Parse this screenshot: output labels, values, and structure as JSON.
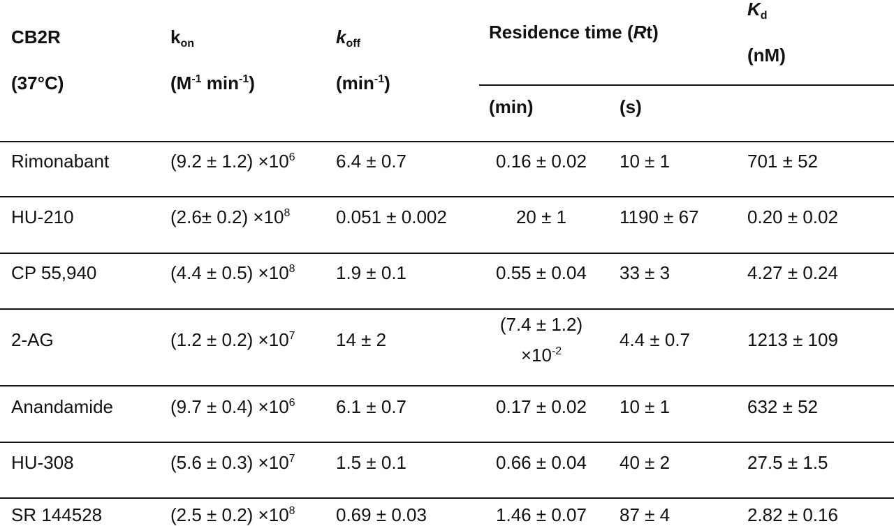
{
  "header": {
    "col1_line1": "CB2R",
    "col1_line2": "(37°C)",
    "kon_k": "k",
    "kon_sub": "on",
    "kon_unit_pre": "(M",
    "kon_unit_sup1": "-1",
    "kon_unit_mid": " min",
    "kon_unit_sup2": "-1",
    "kon_unit_post": ")",
    "koff_k": "k",
    "koff_sub": "off",
    "koff_unit_pre": "(min",
    "koff_unit_sup": "-1",
    "koff_unit_post": ")",
    "rt_pre": "Residence time (",
    "rt_r": "R",
    "rt_post": "t)",
    "rt_min": "(min)",
    "rt_s": "(s)",
    "kd_k": "K",
    "kd_sub": "d",
    "kd_unit": "(nM)"
  },
  "rows": [
    {
      "compound": "Rimonabant",
      "kon": "(9.2 ± 1.2) ×10",
      "kon_exp": "6",
      "koff": "6.4 ± 0.7",
      "rt_min": "0.16 ± 0.02",
      "rt_s": "10 ± 1",
      "kd": "701 ± 52"
    },
    {
      "compound": "HU-210",
      "kon": "(2.6± 0.2) ×10",
      "kon_exp": "8",
      "koff": "0.051 ± 0.002",
      "rt_min": "20 ± 1",
      "rt_s": "1190 ± 67",
      "kd": "0.20 ± 0.02"
    },
    {
      "compound": "CP 55,940",
      "kon": "(4.4 ± 0.5) ×10",
      "kon_exp": "8",
      "koff": "1.9 ± 0.1",
      "rt_min": "0.55 ± 0.04",
      "rt_s": "33 ± 3",
      "kd": "4.27 ± 0.24"
    },
    {
      "compound": "2-AG",
      "kon": "(1.2 ± 0.2) ×10",
      "kon_exp": "7",
      "koff": "14 ± 2",
      "rt_min_line1": "(7.4 ± 1.2)",
      "rt_min_line2": "×10",
      "rt_min_exp": "-2",
      "rt_s": "4.4 ± 0.7",
      "kd": "1213 ± 109"
    },
    {
      "compound": "Anandamide",
      "kon": "(9.7 ± 0.4) ×10",
      "kon_exp": "6",
      "koff": "6.1 ± 0.7",
      "rt_min": "0.17 ± 0.02",
      "rt_s": "10 ± 1",
      "kd": "632 ± 52"
    },
    {
      "compound": "HU-308",
      "kon": "(5.6 ± 0.3) ×10",
      "kon_exp": "7",
      "koff": "1.5 ± 0.1",
      "rt_min": "0.66 ± 0.04",
      "rt_s": "40 ± 2",
      "kd": "27.5 ± 1.5"
    },
    {
      "compound": "SR 144528",
      "kon": "(2.5 ± 0.2) ×10",
      "kon_exp": "8",
      "koff": "0.69 ± 0.03",
      "rt_min": "1.46 ± 0.07",
      "rt_s": "87 ± 4",
      "kd": "2.82 ± 0.16"
    }
  ]
}
